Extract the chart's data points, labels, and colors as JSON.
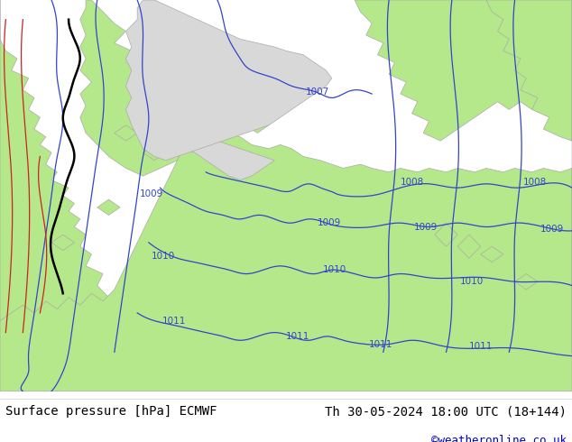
{
  "title_left": "Surface pressure [hPa] ECMWF",
  "title_right": "Th 30-05-2024 18:00 UTC (18+144)",
  "credit": "©weatheronline.co.uk",
  "sea_color": "#d8d8d8",
  "land_color": "#b5e88a",
  "coast_color": "#aaaaaa",
  "blue": "#3344cc",
  "black": "#000000",
  "red": "#cc2222",
  "label_fontsize": 7.5,
  "title_fontsize": 10,
  "credit_fontsize": 9
}
